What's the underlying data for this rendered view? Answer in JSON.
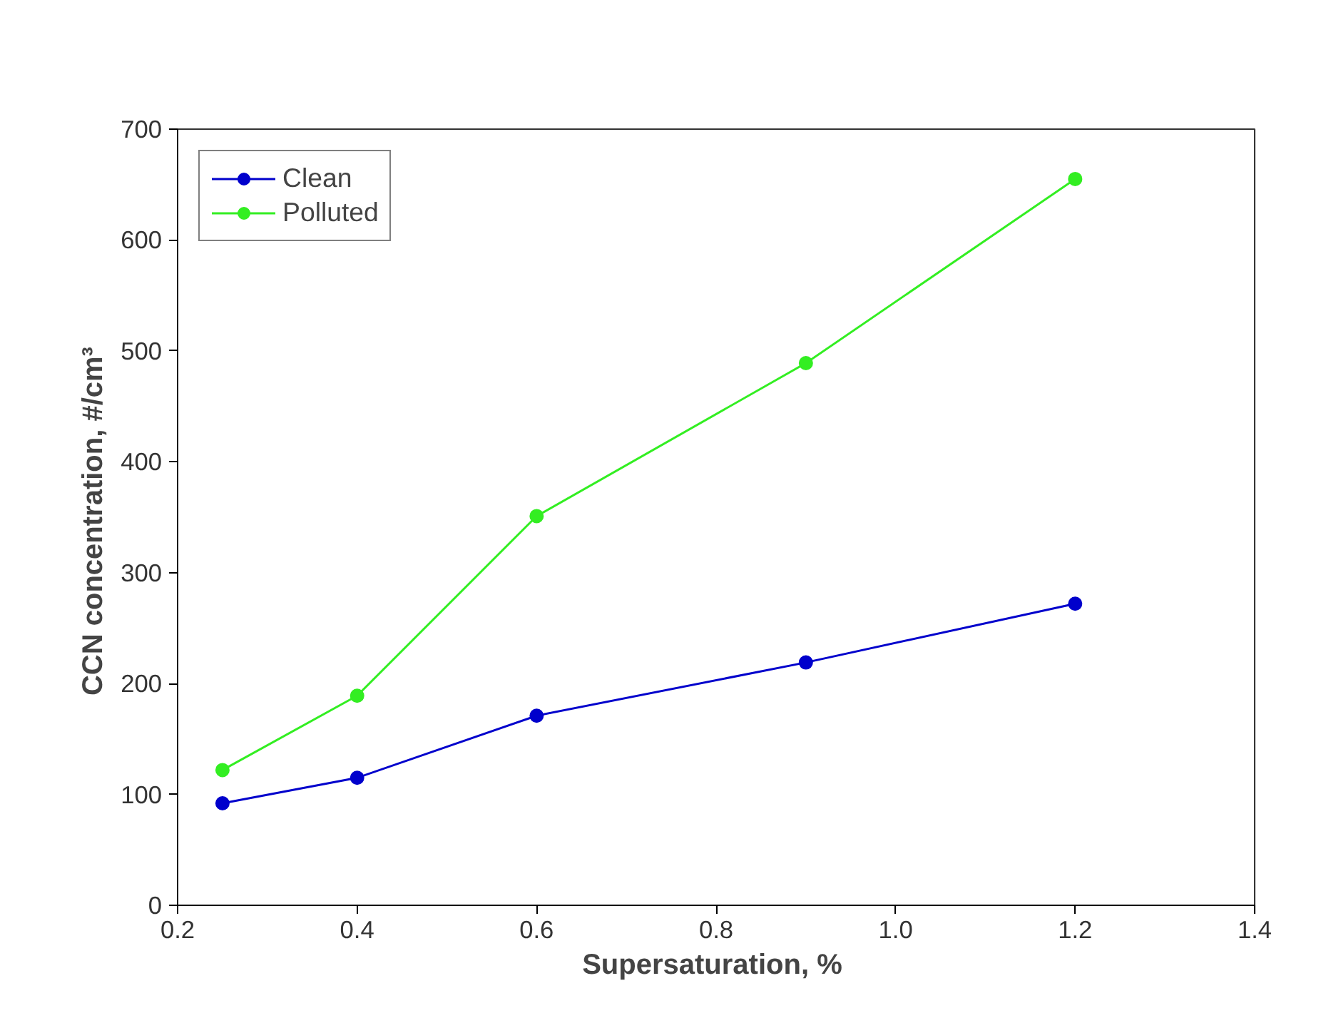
{
  "chart_data": {
    "type": "line",
    "xlabel": "Supersaturation,  %",
    "ylabel": "CCN concentration,  #/cm³",
    "x": [
      0.25,
      0.4,
      0.6,
      0.9,
      1.2
    ],
    "series": [
      {
        "name": "Clean",
        "color": "#0000cc",
        "values": [
          92,
          115,
          171,
          219,
          272
        ]
      },
      {
        "name": "Polluted",
        "color": "#33ee22",
        "values": [
          122,
          189,
          351,
          489,
          655
        ]
      }
    ],
    "xlim": [
      0.2,
      1.4
    ],
    "xticks": [
      {
        "value": 0.2,
        "label": "0.2"
      },
      {
        "value": 0.4,
        "label": "0.4"
      },
      {
        "value": 0.6,
        "label": "0.6"
      },
      {
        "value": 0.8,
        "label": "0.8"
      },
      {
        "value": 1.0,
        "label": "1.0"
      },
      {
        "value": 1.2,
        "label": "1.2"
      },
      {
        "value": 1.4,
        "label": "1.4"
      }
    ],
    "ylim": [
      0,
      700
    ],
    "yticks": [
      0,
      100,
      200,
      300,
      400,
      500,
      600,
      700
    ],
    "grid": false,
    "legend": "top left",
    "marker": "circle",
    "line_style": "solid"
  }
}
